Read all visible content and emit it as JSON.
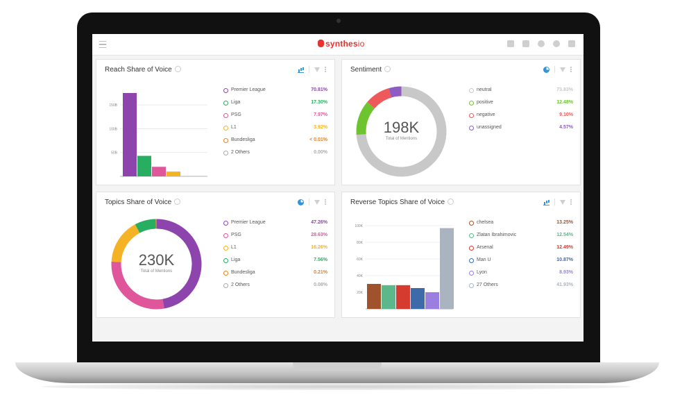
{
  "app": {
    "logo_text": "synthes",
    "logo_suffix": "io",
    "toolbar_icons": [
      "home-icon",
      "share-icon",
      "user-icon",
      "gear-icon",
      "fullscreen-icon"
    ]
  },
  "colors": {
    "brand": "#e8312f",
    "tool_active": "#2f95dc"
  },
  "panels": {
    "reach": {
      "title": "Reach Share of Voice",
      "legend": [
        {
          "label": "Premier League",
          "value": "70.81%",
          "color": "#8e44ad"
        },
        {
          "label": "Liga",
          "value": "17.30%",
          "color": "#27ae60"
        },
        {
          "label": "PSG",
          "value": "7.97%",
          "color": "#e0569b"
        },
        {
          "label": "L1",
          "value": "3.92%",
          "color": "#f4b324"
        },
        {
          "label": "Bundesliga",
          "value": "< 0.01%",
          "color": "#e67e22"
        },
        {
          "label": "2 Others",
          "value": "0.00%",
          "color": "#aaaaaa"
        }
      ]
    },
    "sentiment": {
      "title": "Sentiment",
      "center_value": "198K",
      "center_label": "Total of Mentions",
      "legend": [
        {
          "label": "neutral",
          "value": "73.83%",
          "color": "#c8c8c8"
        },
        {
          "label": "positive",
          "value": "12.48%",
          "color": "#6dc42f"
        },
        {
          "label": "negative",
          "value": "9.10%",
          "color": "#ee5a5a"
        },
        {
          "label": "unassigned",
          "value": "4.57%",
          "color": "#8e5cc2"
        }
      ]
    },
    "topics": {
      "title": "Topics Share of Voice",
      "center_value": "230K",
      "center_label": "Total of Mentions",
      "legend": [
        {
          "label": "Premier League",
          "value": "47.26%",
          "color": "#8e44ad"
        },
        {
          "label": "PSG",
          "value": "28.63%",
          "color": "#e0569b"
        },
        {
          "label": "L1",
          "value": "16.26%",
          "color": "#f4b324"
        },
        {
          "label": "Liga",
          "value": "7.56%",
          "color": "#27ae60"
        },
        {
          "label": "Bundesliga",
          "value": "0.21%",
          "color": "#e67e22"
        },
        {
          "label": "2 Others",
          "value": "0.08%",
          "color": "#aaaaaa"
        }
      ]
    },
    "reverse": {
      "title": "Reverse Topics Share of Voice",
      "legend": [
        {
          "label": "chelsea",
          "value": "13.25%",
          "color": "#a0522d"
        },
        {
          "label": "Zlatan Ibrahimovic",
          "value": "12.54%",
          "color": "#5cb88a"
        },
        {
          "label": "Arsenal",
          "value": "12.49%",
          "color": "#d63b2f"
        },
        {
          "label": "Man U",
          "value": "10.87%",
          "color": "#3d6aa8"
        },
        {
          "label": "Lyon",
          "value": "8.93%",
          "color": "#9b7fe0"
        },
        {
          "label": "27 Others",
          "value": "41.93%",
          "color": "#aab4c0"
        }
      ]
    }
  },
  "chart_data": [
    {
      "type": "bar",
      "categories": [
        "Premier League",
        "Liga",
        "PSG",
        "L1"
      ],
      "values": [
        175,
        43,
        20,
        10
      ],
      "yticks": [
        "150B",
        "100B",
        "50B"
      ],
      "ytick_values": [
        150,
        100,
        50
      ],
      "ylim": [
        0,
        175
      ],
      "colors": [
        "#8e44ad",
        "#27ae60",
        "#e0569b",
        "#f4b324"
      ],
      "grid": true
    },
    {
      "type": "pie",
      "donut": true,
      "labels": [
        "neutral",
        "positive",
        "negative",
        "unassigned"
      ],
      "values": [
        73.83,
        12.48,
        9.1,
        4.57
      ],
      "colors": [
        "#c8c8c8",
        "#6dc42f",
        "#ee5a5a",
        "#8e5cc2"
      ]
    },
    {
      "type": "pie",
      "donut": true,
      "labels": [
        "Premier League",
        "PSG",
        "L1",
        "Liga",
        "Bundesliga",
        "2 Others"
      ],
      "values": [
        47.26,
        28.63,
        16.26,
        7.56,
        0.21,
        0.08
      ],
      "colors": [
        "#8e44ad",
        "#e0569b",
        "#f4b324",
        "#27ae60",
        "#e67e22",
        "#aaaaaa"
      ]
    },
    {
      "type": "bar",
      "categories": [
        "chelsea",
        "Zlatan Ibrahimovic",
        "Arsenal",
        "Man U",
        "Lyon",
        "27 Others"
      ],
      "values": [
        30,
        28.5,
        28.5,
        25,
        20,
        97
      ],
      "yticks": [
        "100K",
        "80K",
        "60K",
        "40K",
        "20K"
      ],
      "ytick_values": [
        100,
        80,
        60,
        40,
        20
      ],
      "ylim": [
        0,
        100
      ],
      "colors": [
        "#a0522d",
        "#5cb88a",
        "#d63b2f",
        "#3d6aa8",
        "#9b7fe0",
        "#aab4c0"
      ],
      "grid": true
    }
  ]
}
